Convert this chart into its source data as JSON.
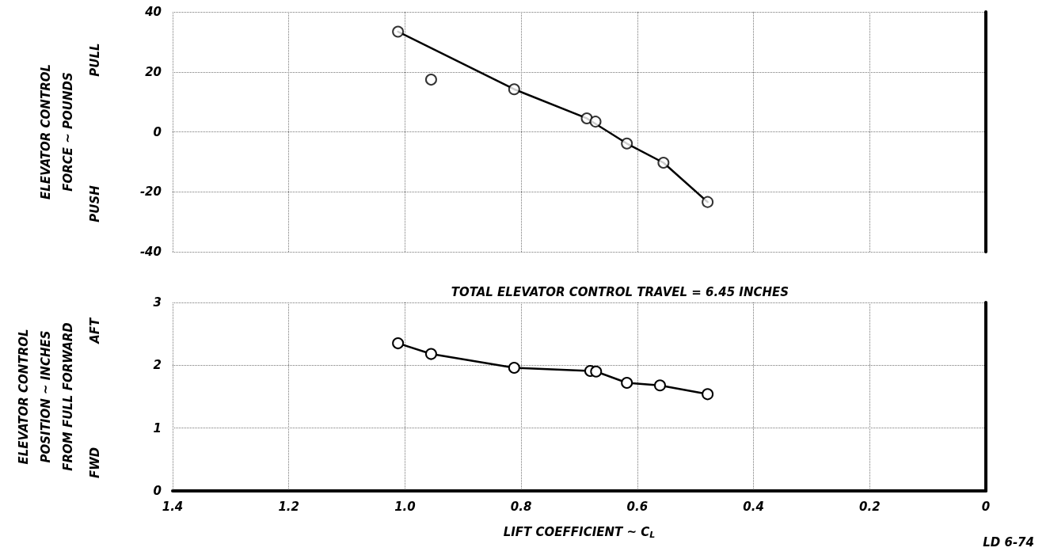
{
  "chart_data": [
    {
      "type": "scatter",
      "ylabel": "ELEVATOR CONTROL\nFORCE ~ POUNDS",
      "annotations": [
        "PULL",
        "PUSH"
      ],
      "xlim": [
        1.4,
        0
      ],
      "xticks": [
        1.4,
        1.2,
        1,
        0.8,
        0.6,
        0.4,
        0.2,
        0
      ],
      "ylim": [
        -40,
        40
      ],
      "yticks": [
        -40,
        -20,
        0,
        20,
        40
      ],
      "tick_labels": "y",
      "grid": true,
      "marker": "circle",
      "series": [
        {
          "color": "#000000",
          "x": [
            1.012,
            0.955,
            0.812,
            0.687,
            0.672,
            0.618,
            0.555,
            0.479
          ],
          "values": [
            33.4,
            17.4,
            14.2,
            4.5,
            3.4,
            -3.9,
            -10.3,
            -23.4
          ]
        },
        {
          "type": "line",
          "color": "#000000",
          "marker": "none",
          "x": [
            1.012,
            0.812,
            0.687,
            0.618,
            0.555,
            0.479
          ],
          "values": [
            33.4,
            14.2,
            4.5,
            -3.9,
            -10.3,
            -23.4
          ]
        }
      ]
    },
    {
      "type": "line",
      "ylabel": "ELEVATOR CONTROL\nPOSITION ~ INCHES\nFROM FULL FORWARD",
      "xlabel": "LIFT COEFFICIENT ~ C$_{L}$",
      "annotations": [
        "TOTAL ELEVATOR CONTROL TRAVEL = 6.45 INCHES",
        "LD 6-74",
        "AFT",
        "FWD"
      ],
      "xlim": [
        1.4,
        0
      ],
      "xticks": [
        1.4,
        1.2,
        {
          "value": 1,
          "label": "1.0"
        },
        0.8,
        0.6,
        0.4,
        0.2,
        0
      ],
      "ylim": [
        0,
        3
      ],
      "yticks": [
        0,
        1,
        2,
        3
      ],
      "grid": true,
      "marker": "circle",
      "line_style": "solid",
      "series": [
        {
          "color": "#000000",
          "x": [
            1.012,
            0.955,
            0.812,
            0.681,
            0.671,
            0.618,
            0.561,
            0.479
          ],
          "values": [
            2.35,
            2.18,
            1.96,
            1.91,
            1.9,
            1.72,
            1.68,
            1.54
          ]
        }
      ]
    }
  ]
}
